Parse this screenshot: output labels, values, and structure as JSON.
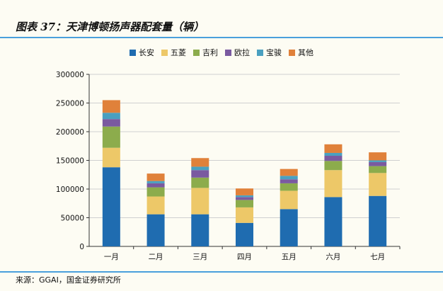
{
  "header": {
    "title": "图表 37：天津博顿扬声器配套量（辆）"
  },
  "footer": {
    "source": "来源：GGAI，国金证券研究所"
  },
  "chart_data": {
    "type": "bar",
    "stacked": true,
    "title": "",
    "xlabel": "",
    "ylabel": "",
    "categories": [
      "一月",
      "二月",
      "三月",
      "四月",
      "五月",
      "六月",
      "七月"
    ],
    "ylim": [
      0,
      300000
    ],
    "yticks": [
      "0",
      "50000",
      "100000",
      "150000",
      "200000",
      "250000",
      "300000"
    ],
    "grid": true,
    "legend_position": "top",
    "series": [
      {
        "name": "长安",
        "color": "#1f6cb0",
        "values": [
          138000,
          56000,
          56000,
          41000,
          65000,
          86000,
          88000
        ]
      },
      {
        "name": "五菱",
        "color": "#edc868",
        "values": [
          34000,
          31000,
          46000,
          27000,
          32000,
          47000,
          40000
        ]
      },
      {
        "name": "吉利",
        "color": "#8cac4c",
        "values": [
          37000,
          16000,
          18000,
          13000,
          13000,
          16000,
          12000
        ]
      },
      {
        "name": "欧拉",
        "color": "#7a5aa0",
        "values": [
          13000,
          7000,
          13000,
          5000,
          7000,
          9000,
          7000
        ]
      },
      {
        "name": "宝骏",
        "color": "#4aa0c0",
        "values": [
          11000,
          4000,
          6000,
          3000,
          6000,
          5000,
          3000
        ]
      },
      {
        "name": "其他",
        "color": "#e0813a",
        "values": [
          22000,
          13000,
          15000,
          12000,
          12000,
          15000,
          14000
        ]
      }
    ]
  }
}
